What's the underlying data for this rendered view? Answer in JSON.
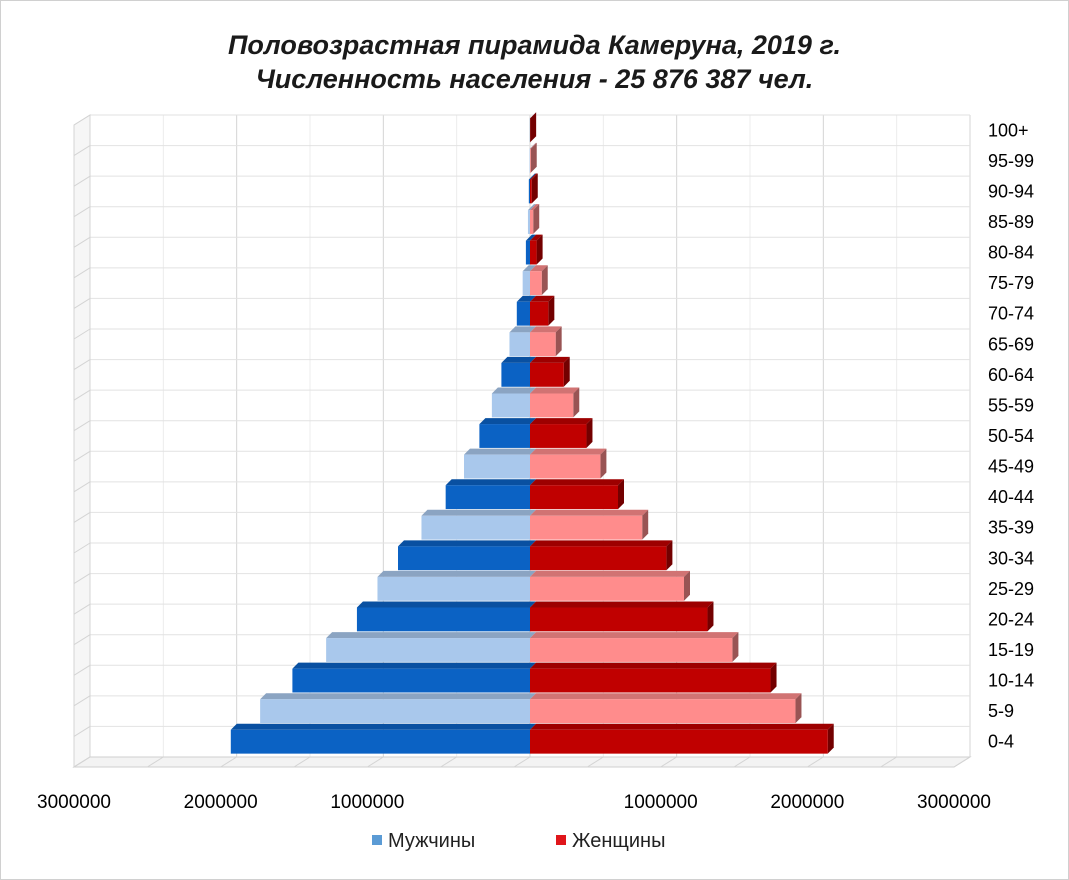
{
  "chart_data": {
    "type": "bar",
    "title": "Половозрастная пирамида Камеруна, 2019 г.",
    "subtitle": "Численность населения - 25 876 387 чел.",
    "categories": [
      "100+",
      "95-99",
      "90-94",
      "85-89",
      "80-84",
      "75-79",
      "70-74",
      "65-69",
      "60-64",
      "55-59",
      "50-54",
      "45-49",
      "40-44",
      "35-39",
      "30-34",
      "25-29",
      "20-24",
      "15-19",
      "10-14",
      "5-9",
      "0-4"
    ],
    "series": [
      {
        "name": "Мужчины",
        "values": [
          600,
          3000,
          8000,
          14000,
          28000,
          50000,
          90000,
          140000,
          195000,
          260000,
          345000,
          450000,
          575000,
          740000,
          900000,
          1040000,
          1180000,
          1390000,
          1620000,
          1840000,
          2040000
        ]
      },
      {
        "name": "Женщины",
        "values": [
          1000,
          5000,
          12000,
          22000,
          45000,
          80000,
          125000,
          175000,
          230000,
          295000,
          385000,
          480000,
          600000,
          765000,
          930000,
          1050000,
          1210000,
          1380000,
          1640000,
          1810000,
          2030000
        ]
      }
    ],
    "xlim": [
      -3000000,
      3000000
    ],
    "xticks": [
      "3000000",
      "2000000",
      "1000000",
      "",
      "1000000",
      "2000000",
      "3000000"
    ],
    "colors": {
      "male_dark": "#0b62c4",
      "male_light": "#a9c8ec",
      "female_dark": "#c00000",
      "female_light": "#ff8c8c",
      "legend_male": "#5b9bd5",
      "legend_female": "#e0161b"
    },
    "legend": {
      "male": "Мужчины",
      "female": "Женщины",
      "position": "bottom"
    },
    "grid": true
  }
}
